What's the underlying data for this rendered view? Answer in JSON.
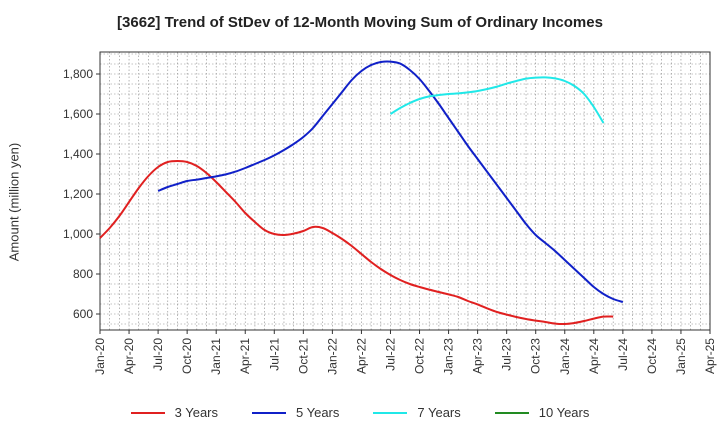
{
  "chart_data": {
    "type": "line",
    "title": "[3662]  Trend of StDev of 12-Month Moving Sum of Ordinary Incomes",
    "xlabel": "",
    "ylabel": "Amount (million yen)",
    "ylim": [
      520,
      1910
    ],
    "yticks": [
      600,
      800,
      1000,
      1200,
      1400,
      1600,
      1800
    ],
    "ytick_labels": [
      "600",
      "800",
      "1,000",
      "1,200",
      "1,400",
      "1,600",
      "1,800"
    ],
    "x_ticks": [
      "Jan-20",
      "Apr-20",
      "Jul-20",
      "Oct-20",
      "Jan-21",
      "Apr-21",
      "Jul-21",
      "Oct-21",
      "Jan-22",
      "Apr-22",
      "Jul-22",
      "Oct-22",
      "Jan-23",
      "Apr-23",
      "Jul-23",
      "Oct-23",
      "Jan-24",
      "Apr-24",
      "Jul-24",
      "Oct-24",
      "Jan-25",
      "Apr-25"
    ],
    "grid": true,
    "legend_position": "bottom",
    "series": [
      {
        "name": "3 Years",
        "color": "#e02020",
        "start_index": 0,
        "values": [
          980,
          1030,
          1090,
          1160,
          1230,
          1290,
          1335,
          1360,
          1365,
          1360,
          1340,
          1305,
          1260,
          1210,
          1160,
          1105,
          1060,
          1020,
          1000,
          995,
          1002,
          1015,
          1035,
          1030,
          1005,
          975,
          940,
          900,
          860,
          825,
          795,
          770,
          750,
          735,
          722,
          710,
          698,
          685,
          665,
          648,
          628,
          610,
          597,
          585,
          575,
          567,
          560,
          552,
          550,
          555,
          565,
          577,
          587,
          587
        ]
      },
      {
        "name": "5 Years",
        "color": "#1020c8",
        "start_index": 6,
        "values": [
          1215,
          1235,
          1250,
          1265,
          1272,
          1280,
          1288,
          1298,
          1312,
          1330,
          1350,
          1370,
          1393,
          1420,
          1450,
          1485,
          1530,
          1590,
          1650,
          1710,
          1770,
          1815,
          1845,
          1860,
          1862,
          1852,
          1820,
          1775,
          1715,
          1650,
          1580,
          1510,
          1440,
          1375,
          1310,
          1245,
          1180,
          1115,
          1050,
          995,
          955,
          915,
          870,
          825,
          780,
          735,
          700,
          675,
          660
        ]
      },
      {
        "name": "7 Years",
        "color": "#20e8e8",
        "start_index": 30,
        "values": [
          1600,
          1630,
          1655,
          1675,
          1688,
          1695,
          1700,
          1703,
          1708,
          1715,
          1725,
          1737,
          1752,
          1765,
          1777,
          1782,
          1783,
          1778,
          1765,
          1740,
          1700,
          1635,
          1555
        ]
      },
      {
        "name": "10 Years",
        "color": "#228b22",
        "start_index": 0,
        "values": []
      }
    ]
  }
}
